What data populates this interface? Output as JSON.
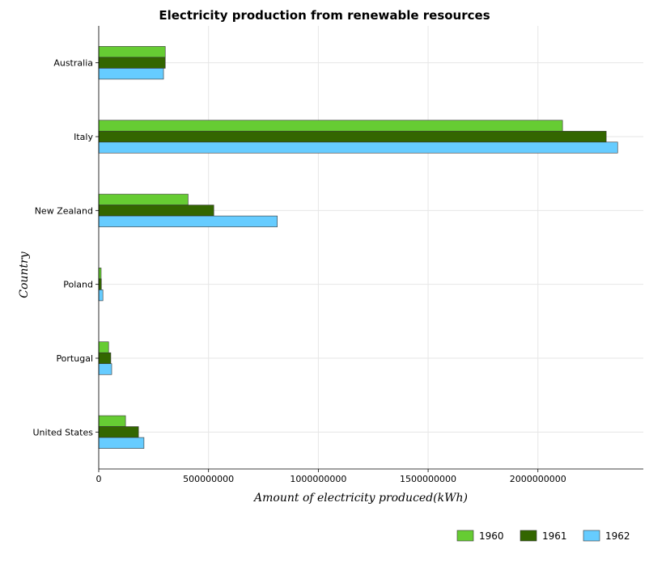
{
  "chart_data": {
    "type": "bar",
    "orientation": "horizontal",
    "title": "Electricity production from renewable resources",
    "xlabel": "Amount of electricity produced(kWh)",
    "ylabel": "Country",
    "categories": [
      "Australia",
      "Italy",
      "New Zealand",
      "Poland",
      "Portugal",
      "United States"
    ],
    "series": [
      {
        "name": "1960",
        "color": "#66cc33",
        "values": [
          303000000,
          2112000000,
          407000000,
          11000000,
          45000000,
          122000000
        ]
      },
      {
        "name": "1961",
        "color": "#336600",
        "values": [
          303000000,
          2311000000,
          524000000,
          12000000,
          55000000,
          181000000
        ]
      },
      {
        "name": "1962",
        "color": "#66ccff",
        "values": [
          295000000,
          2363000000,
          813000000,
          19000000,
          59000000,
          206000000
        ]
      }
    ],
    "xlim": [
      0,
      2480000000
    ],
    "xticks": [
      0,
      500000000,
      1000000000,
      1500000000,
      2000000000
    ],
    "xtick_labels": [
      "0",
      "500000000",
      "1000000000",
      "1500000000",
      "2000000000"
    ],
    "grid": true,
    "legend_position": "bottom-right"
  }
}
